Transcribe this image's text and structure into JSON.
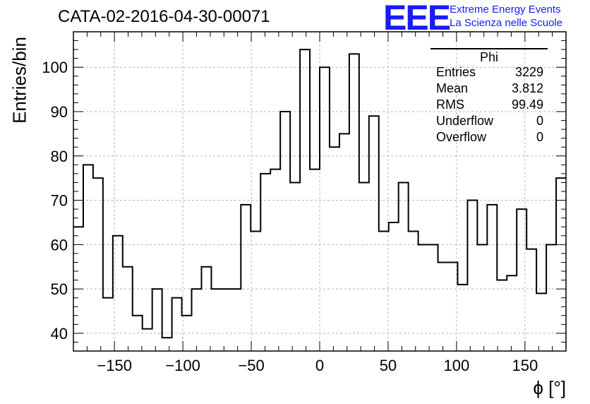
{
  "title": "CATA-02-2016-04-30-00071",
  "logo": {
    "mark": "EEE",
    "line1": "Extreme Energy Events",
    "line2": "La Scienza nelle Scuole",
    "color": "#1a1aff"
  },
  "stats_box": {
    "name": "Phi",
    "rows": [
      {
        "label": "Entries",
        "value": "3229"
      },
      {
        "label": "Mean",
        "value": "3.812"
      },
      {
        "label": "RMS",
        "value": "99.49"
      },
      {
        "label": "Underflow",
        "value": "0"
      },
      {
        "label": "Overflow",
        "value": "0"
      }
    ]
  },
  "chart_data": {
    "type": "bar",
    "title": "CATA-02-2016-04-30-00071",
    "xlabel": "ϕ [°]",
    "ylabel": "Entries/bin",
    "xlim": [
      -180,
      180
    ],
    "ylim": [
      36,
      108
    ],
    "bin_edges": [
      -180,
      -172.8,
      -165.6,
      -158.4,
      -151.2,
      -144,
      -136.8,
      -129.6,
      -122.4,
      -115.2,
      -108,
      -100.8,
      -93.6,
      -86.4,
      -79.2,
      -72,
      -64.8,
      -57.6,
      -50.4,
      -43.2,
      -36,
      -28.8,
      -21.6,
      -14.4,
      -7.2,
      0,
      7.2,
      14.4,
      21.6,
      28.8,
      36,
      43.2,
      50.4,
      57.6,
      64.8,
      72,
      79.2,
      86.4,
      93.6,
      100.8,
      108,
      115.2,
      122.4,
      129.6,
      136.8,
      144,
      151.2,
      158.4,
      165.6,
      172.8,
      180
    ],
    "values": [
      64,
      78,
      75,
      48,
      62,
      55,
      44,
      41,
      50,
      39,
      48,
      44,
      50,
      55,
      50,
      50,
      50,
      69,
      63,
      76,
      77,
      90,
      74,
      104,
      77,
      100,
      82,
      85,
      103,
      74,
      89,
      63,
      65,
      74,
      63,
      60,
      60,
      56,
      56,
      51,
      70,
      60,
      69,
      52,
      53,
      68,
      59,
      49,
      60,
      75
    ],
    "xticks": [
      -150,
      -100,
      -50,
      0,
      50,
      100,
      150
    ],
    "yticks": [
      40,
      50,
      60,
      70,
      80,
      90,
      100
    ],
    "grid": true,
    "line_color": "#000000"
  }
}
